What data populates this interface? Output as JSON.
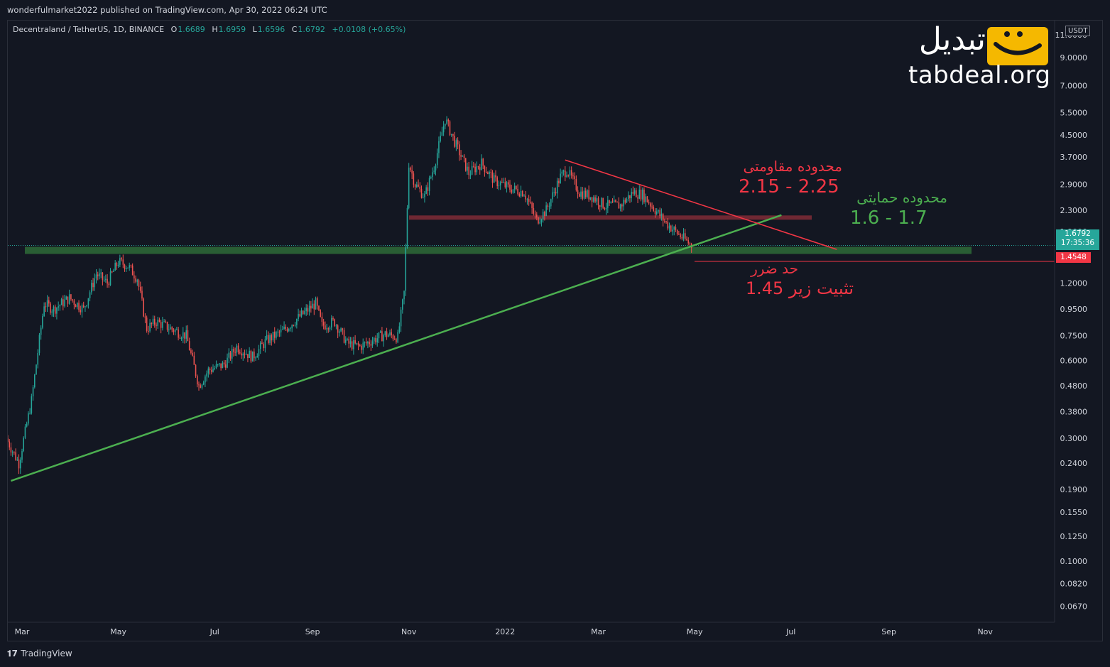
{
  "header": {
    "published": "wonderfulmarket2022 published on TradingView.com, Apr 30, 2022 06:24 UTC"
  },
  "legend": {
    "symbol": "Decentraland / TetherUS, 1D, BINANCE",
    "open_label": "O",
    "open": "1.6689",
    "high_label": "H",
    "high": "1.6959",
    "low_label": "L",
    "low": "1.6596",
    "close_label": "C",
    "close": "1.6792",
    "change": "+0.0108 (+0.65%)"
  },
  "logo": {
    "persian": "تبدیل",
    "domain": "tabdeal.org"
  },
  "annotations": {
    "resistance_label": "محدوده مقاومتی",
    "resistance_range": "2.15 - 2.25",
    "support_label": "محدوده حمایتی",
    "support_range": "1.6 - 1.7",
    "stop_label": "حد ضرر",
    "stop_value": "تثبیت زیر 1.45"
  },
  "price_scale": {
    "unit": "USDT",
    "last_price": "1.6792",
    "countdown": "17:35:36",
    "stop_price": "1.4548"
  },
  "footer": {
    "brand": "TradingView"
  },
  "colors": {
    "background": "#131722",
    "up": "#26a69a",
    "down": "#ef5350",
    "support_line": "#4caf50",
    "resistance_line": "#f23645",
    "support_zone": "#2e6b37",
    "resistance_zone": "#7a2a35"
  },
  "chart_data": {
    "type": "candlestick",
    "y_scale": "log",
    "y_ticks": [
      "11.0000",
      "9.0000",
      "7.0000",
      "5.5000",
      "4.5000",
      "3.7000",
      "2.9000",
      "2.3000",
      "1.9000",
      "1.2000",
      "0.9500",
      "0.7500",
      "0.6000",
      "0.4800",
      "0.3800",
      "0.3000",
      "0.2400",
      "0.1900",
      "0.1550",
      "0.1250",
      "0.1000",
      "0.0820",
      "0.0670"
    ],
    "x_ticks": [
      "Mar",
      "May",
      "Jul",
      "Sep",
      "Nov",
      "2022",
      "Mar",
      "May",
      "Jul",
      "Sep",
      "Nov"
    ],
    "x_start": "2021-02-20",
    "x_end": "2022-12-15",
    "closes": [
      [
        "2021-02-20",
        0.3
      ],
      [
        "2021-02-28",
        0.24
      ],
      [
        "2021-03-08",
        0.42
      ],
      [
        "2021-03-16",
        1.0
      ],
      [
        "2021-03-22",
        0.95
      ],
      [
        "2021-04-01",
        1.05
      ],
      [
        "2021-04-10",
        0.95
      ],
      [
        "2021-04-18",
        1.3
      ],
      [
        "2021-04-25",
        1.2
      ],
      [
        "2021-05-02",
        1.45
      ],
      [
        "2021-05-08",
        1.4
      ],
      [
        "2021-05-14",
        1.25
      ],
      [
        "2021-05-20",
        0.8
      ],
      [
        "2021-05-26",
        0.85
      ],
      [
        "2021-06-04",
        0.8
      ],
      [
        "2021-06-14",
        0.75
      ],
      [
        "2021-06-22",
        0.48
      ],
      [
        "2021-06-28",
        0.55
      ],
      [
        "2021-07-08",
        0.58
      ],
      [
        "2021-07-16",
        0.68
      ],
      [
        "2021-07-26",
        0.62
      ],
      [
        "2021-08-04",
        0.72
      ],
      [
        "2021-08-14",
        0.78
      ],
      [
        "2021-08-24",
        0.88
      ],
      [
        "2021-09-04",
        1.0
      ],
      [
        "2021-09-08",
        0.82
      ],
      [
        "2021-09-16",
        0.85
      ],
      [
        "2021-09-24",
        0.7
      ],
      [
        "2021-10-02",
        0.68
      ],
      [
        "2021-10-10",
        0.72
      ],
      [
        "2021-10-18",
        0.76
      ],
      [
        "2021-10-26",
        0.74
      ],
      [
        "2021-10-30",
        1.1
      ],
      [
        "2021-11-02",
        3.5
      ],
      [
        "2021-11-06",
        2.9
      ],
      [
        "2021-11-12",
        2.6
      ],
      [
        "2021-11-18",
        3.4
      ],
      [
        "2021-11-25",
        5.2
      ],
      [
        "2021-12-02",
        4.1
      ],
      [
        "2021-12-10",
        3.2
      ],
      [
        "2021-12-18",
        3.5
      ],
      [
        "2021-12-26",
        3.0
      ],
      [
        "2022-01-05",
        2.8
      ],
      [
        "2022-01-14",
        2.7
      ],
      [
        "2022-01-22",
        2.1
      ],
      [
        "2022-01-28",
        2.3
      ],
      [
        "2022-02-06",
        3.1
      ],
      [
        "2022-02-10",
        3.3
      ],
      [
        "2022-02-18",
        2.7
      ],
      [
        "2022-02-26",
        2.6
      ],
      [
        "2022-03-06",
        2.4
      ],
      [
        "2022-03-16",
        2.4
      ],
      [
        "2022-03-24",
        2.7
      ],
      [
        "2022-03-30",
        2.65
      ],
      [
        "2022-04-06",
        2.35
      ],
      [
        "2022-04-14",
        2.05
      ],
      [
        "2022-04-22",
        1.85
      ],
      [
        "2022-04-30",
        1.68
      ]
    ],
    "support_zone": [
      1.6,
      1.7
    ],
    "resistance_zone": [
      2.15,
      2.25
    ],
    "stop_level": 1.4548
  }
}
